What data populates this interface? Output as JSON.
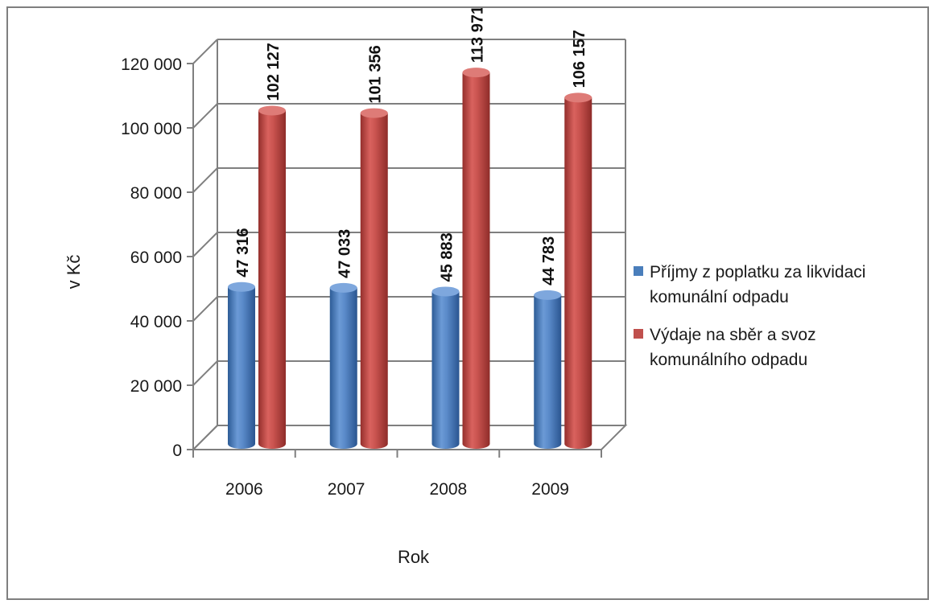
{
  "chart_data": {
    "type": "bar",
    "style": "3d-cylinder",
    "categories": [
      "2006",
      "2007",
      "2008",
      "2009"
    ],
    "series": [
      {
        "name": "Příjmy z poplatku za likvidaci komunální odpadu",
        "legend_lines": [
          "Příjmy z poplatku za likvidaci",
          "komunální odpadu"
        ],
        "values": [
          47316,
          47033,
          45883,
          44783
        ],
        "data_labels": [
          "47 316",
          "47 033",
          "45 883",
          "44 783"
        ],
        "color": "#4a7ebb"
      },
      {
        "name": "Výdaje na sběr a svoz komunálního odpadu",
        "legend_lines": [
          "Výdaje na sběr a svoz",
          "komunálního odpadu"
        ],
        "values": [
          102127,
          101356,
          113971,
          106157
        ],
        "data_labels": [
          "102 127",
          "101 356",
          "113 971",
          "106 157"
        ],
        "color": "#c0504d"
      }
    ],
    "xlabel": "Rok",
    "ylabel": "v Kč",
    "ylim": [
      0,
      120000
    ],
    "yticks": [
      0,
      20000,
      40000,
      60000,
      80000,
      100000,
      120000
    ],
    "ytick_labels": [
      "0",
      "20 000",
      "40 000",
      "60 000",
      "80 000",
      "100 000",
      "120 000"
    ],
    "grid": true,
    "legend_position": "right"
  }
}
